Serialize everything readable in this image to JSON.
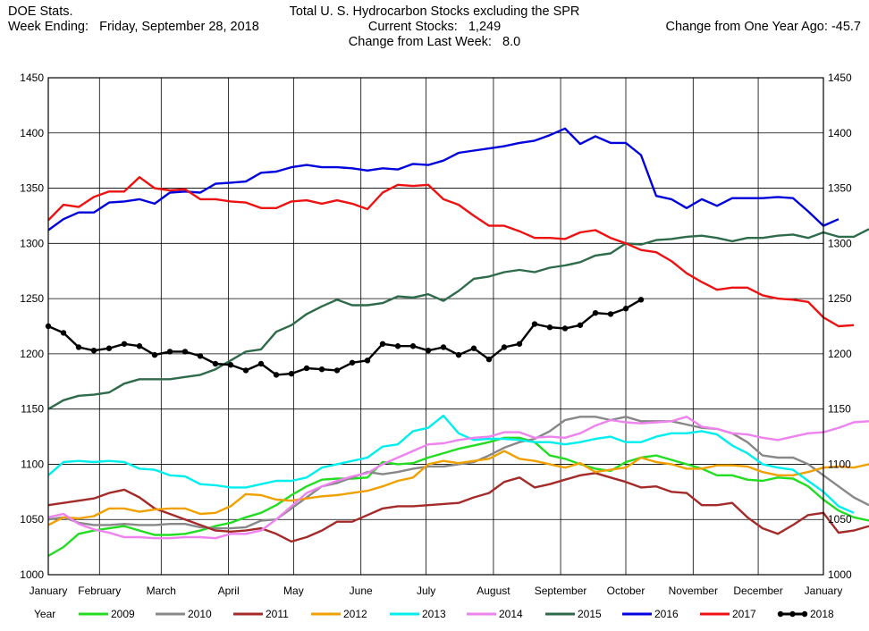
{
  "header": {
    "source": "DOE Stats.",
    "week_label": "Week Ending:",
    "week_value": "Friday, September 28, 2018",
    "title": "Total U. S. Hydrocarbon Stocks excluding the SPR",
    "current_label": "Current Stocks:",
    "current_value": "1,249",
    "change_week_label": "Change from Last Week:",
    "change_week_value": "8.0",
    "change_year_label": "Change from One Year Ago:",
    "change_year_value": "-45.7"
  },
  "legend_title": "Year",
  "chart_data": {
    "type": "line",
    "title": "Total U. S. Hydrocarbon Stocks excluding the SPR",
    "x_unit": "week of year",
    "xlim": [
      1,
      52
    ],
    "ylim": [
      1000,
      1450
    ],
    "yticks": [
      1000,
      1050,
      1100,
      1150,
      1200,
      1250,
      1300,
      1350,
      1400,
      1450
    ],
    "grid": true,
    "legend_position": "bottom",
    "months": [
      {
        "label": "January",
        "week": 1
      },
      {
        "label": "February",
        "week": 4.37
      },
      {
        "label": "March",
        "week": 8.43
      },
      {
        "label": "April",
        "week": 12.86
      },
      {
        "label": "May",
        "week": 17.14
      },
      {
        "label": "June",
        "week": 21.57
      },
      {
        "label": "July",
        "week": 25.86
      },
      {
        "label": "August",
        "week": 30.29
      },
      {
        "label": "September",
        "week": 34.71
      },
      {
        "label": "October",
        "week": 39
      },
      {
        "label": "November",
        "week": 43.43
      },
      {
        "label": "December",
        "week": 47.71
      },
      {
        "label": "January",
        "week": 52.14
      }
    ],
    "series": [
      {
        "name": "2009",
        "color": "#22dd22",
        "markers": false,
        "values": [
          1017,
          1025,
          1037,
          1040,
          1042,
          1044,
          1040,
          1036,
          1036,
          1037,
          1040,
          1044,
          1047,
          1052,
          1056,
          1063,
          1072,
          1080,
          1086,
          1087,
          1087,
          1088,
          1102,
          1100,
          1101,
          1106,
          1110,
          1114,
          1117,
          1120,
          1124,
          1124,
          1120,
          1108,
          1105,
          1100,
          1096,
          1094,
          1102,
          1106,
          1108,
          1104,
          1100,
          1096,
          1090,
          1090,
          1086,
          1085,
          1088,
          1087,
          1080,
          1068,
          1058,
          1052,
          1049
        ]
      },
      {
        "name": "2010",
        "color": "#888888",
        "markers": false,
        "values": [
          1050,
          1052,
          1047,
          1045,
          1045,
          1046,
          1045,
          1045,
          1046,
          1046,
          1043,
          1042,
          1042,
          1043,
          1049,
          1050,
          1060,
          1070,
          1080,
          1083,
          1088,
          1093,
          1091,
          1093,
          1096,
          1098,
          1098,
          1100,
          1102,
          1108,
          1115,
          1120,
          1123,
          1130,
          1140,
          1143,
          1143,
          1140,
          1143,
          1139,
          1139,
          1139,
          1136,
          1133,
          1132,
          1128,
          1120,
          1108,
          1106,
          1106,
          1100,
          1090,
          1080,
          1070,
          1063
        ]
      },
      {
        "name": "2011",
        "color": "#a52a2a",
        "markers": false,
        "values": [
          1063,
          1065,
          1067,
          1069,
          1074,
          1077,
          1070,
          1060,
          1055,
          1050,
          1045,
          1040,
          1039,
          1040,
          1042,
          1037,
          1030,
          1034,
          1040,
          1048,
          1048,
          1054,
          1060,
          1062,
          1062,
          1063,
          1064,
          1065,
          1070,
          1074,
          1084,
          1088,
          1079,
          1082,
          1086,
          1090,
          1092,
          1088,
          1084,
          1079,
          1080,
          1075,
          1074,
          1063,
          1063,
          1065,
          1052,
          1042,
          1037,
          1045,
          1054,
          1056,
          1038,
          1040,
          1044
        ]
      },
      {
        "name": "2012",
        "color": "#f0a000",
        "markers": false,
        "values": [
          1045,
          1052,
          1051,
          1053,
          1060,
          1060,
          1057,
          1059,
          1060,
          1060,
          1055,
          1056,
          1062,
          1073,
          1072,
          1068,
          1067,
          1069,
          1071,
          1072,
          1074,
          1076,
          1080,
          1085,
          1088,
          1100,
          1103,
          1101,
          1103,
          1105,
          1112,
          1105,
          1103,
          1100,
          1097,
          1101,
          1093,
          1095,
          1097,
          1106,
          1102,
          1100,
          1096,
          1096,
          1099,
          1099,
          1098,
          1093,
          1090,
          1090,
          1093,
          1097,
          1098,
          1097,
          1100,
          1090
        ]
      },
      {
        "name": "2013",
        "color": "#00eeee",
        "markers": false,
        "values": [
          1090,
          1102,
          1103,
          1102,
          1103,
          1102,
          1096,
          1095,
          1090,
          1089,
          1082,
          1081,
          1079,
          1079,
          1082,
          1085,
          1085,
          1088,
          1097,
          1100,
          1103,
          1106,
          1116,
          1118,
          1130,
          1133,
          1144,
          1128,
          1122,
          1123,
          1123,
          1122,
          1120,
          1120,
          1118,
          1120,
          1123,
          1125,
          1120,
          1120,
          1125,
          1128,
          1128,
          1130,
          1127,
          1117,
          1110,
          1100,
          1097,
          1095,
          1085,
          1075,
          1062,
          1056
        ]
      },
      {
        "name": "2014",
        "color": "#ee82ee",
        "markers": false,
        "values": [
          1052,
          1055,
          1046,
          1041,
          1038,
          1034,
          1034,
          1033,
          1033,
          1034,
          1034,
          1033,
          1037,
          1037,
          1040,
          1050,
          1062,
          1074,
          1080,
          1085,
          1089,
          1092,
          1100,
          1106,
          1112,
          1118,
          1119,
          1122,
          1124,
          1125,
          1129,
          1129,
          1124,
          1125,
          1124,
          1128,
          1135,
          1140,
          1138,
          1137,
          1138,
          1139,
          1143,
          1134,
          1132,
          1128,
          1127,
          1124,
          1122,
          1125,
          1128,
          1129,
          1133,
          1138,
          1139
        ]
      },
      {
        "name": "2015",
        "color": "#2e6b4a",
        "markers": false,
        "values": [
          1150,
          1158,
          1162,
          1163,
          1165,
          1173,
          1177,
          1177,
          1177,
          1179,
          1181,
          1186,
          1194,
          1202,
          1204,
          1220,
          1226,
          1236,
          1243,
          1249,
          1244,
          1244,
          1246,
          1252,
          1251,
          1254,
          1248,
          1257,
          1268,
          1270,
          1274,
          1276,
          1274,
          1278,
          1280,
          1283,
          1289,
          1291,
          1300,
          1299,
          1303,
          1304,
          1306,
          1307,
          1305,
          1302,
          1305,
          1305,
          1307,
          1308,
          1305,
          1310,
          1306,
          1306,
          1313
        ]
      },
      {
        "name": "2016",
        "color": "#0000dd",
        "markers": false,
        "values": [
          1312,
          1322,
          1328,
          1328,
          1337,
          1338,
          1340,
          1336,
          1346,
          1347,
          1346,
          1354,
          1355,
          1356,
          1364,
          1365,
          1369,
          1371,
          1369,
          1369,
          1368,
          1366,
          1368,
          1367,
          1372,
          1371,
          1375,
          1382,
          1384,
          1386,
          1388,
          1391,
          1393,
          1398,
          1404,
          1390,
          1397,
          1391,
          1391,
          1380,
          1343,
          1340,
          1332,
          1340,
          1334,
          1341,
          1341,
          1341,
          1342,
          1341,
          1329,
          1316,
          1322
        ]
      },
      {
        "name": "2017",
        "color": "#ee1111",
        "markers": false,
        "values": [
          1321,
          1335,
          1333,
          1342,
          1347,
          1347,
          1360,
          1350,
          1348,
          1349,
          1340,
          1340,
          1338,
          1337,
          1332,
          1332,
          1338,
          1339,
          1336,
          1339,
          1336,
          1331,
          1346,
          1353,
          1352,
          1353,
          1340,
          1335,
          1325,
          1316,
          1316,
          1311,
          1305,
          1305,
          1304,
          1310,
          1312,
          1305,
          1300,
          1294,
          1292,
          1284,
          1273,
          1265,
          1258,
          1260,
          1260,
          1253,
          1250,
          1249,
          1247,
          1233,
          1225,
          1226
        ]
      },
      {
        "name": "2018",
        "color": "#000000",
        "markers": true,
        "values": [
          1225,
          1219,
          1206,
          1203,
          1205,
          1209,
          1207,
          1199,
          1202,
          1202,
          1198,
          1191,
          1190,
          1185,
          1191,
          1181,
          1182,
          1187,
          1186,
          1185,
          1192,
          1194,
          1209,
          1207,
          1207,
          1203,
          1206,
          1199,
          1205,
          1195,
          1206,
          1209,
          1227,
          1224,
          1223,
          1226,
          1237,
          1236,
          1241,
          1249
        ]
      }
    ]
  }
}
